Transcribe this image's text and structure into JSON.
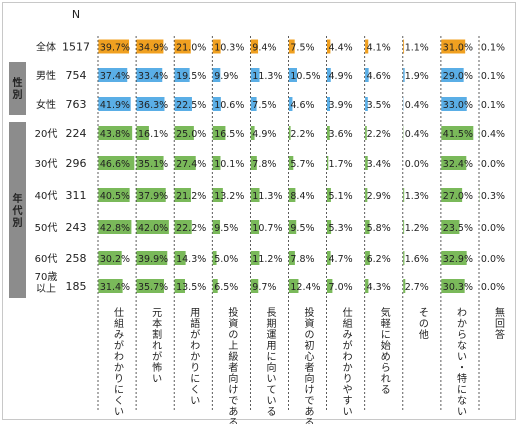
{
  "chart_data": {
    "type": "table",
    "n_header": "N",
    "columns": [
      "仕組みがわかりにくい",
      "元本割れが怖い",
      "用語がわかりにくい",
      "投資の上級者向けである",
      "長期運用に向いている",
      "投資の初心者向けである",
      "仕組みがわかりやすい",
      "気軽に始められる",
      "その他",
      "わからない・特にない",
      "無回答"
    ],
    "groups": [
      {
        "label": "",
        "rows": [
          0
        ]
      },
      {
        "label": "性別",
        "rows": [
          1,
          2
        ]
      },
      {
        "label": "年代別",
        "rows": [
          3,
          4,
          5,
          6,
          7,
          8
        ]
      }
    ],
    "rows": [
      {
        "label": "全体",
        "n": "1517",
        "values": [
          39.7,
          34.9,
          21.0,
          10.3,
          9.4,
          7.5,
          4.4,
          4.1,
          1.1,
          31.0,
          0.1
        ]
      },
      {
        "label": "男性",
        "n": "754",
        "values": [
          37.4,
          33.4,
          19.5,
          9.9,
          11.3,
          10.5,
          4.9,
          4.6,
          1.9,
          29.0,
          0.1
        ]
      },
      {
        "label": "女性",
        "n": "763",
        "values": [
          41.9,
          36.3,
          22.5,
          10.6,
          7.5,
          4.6,
          3.9,
          3.5,
          0.4,
          33.0,
          0.1
        ]
      },
      {
        "label": "20代",
        "n": "224",
        "values": [
          43.8,
          16.1,
          25.0,
          16.5,
          4.9,
          2.2,
          3.6,
          2.2,
          0.4,
          41.5,
          0.4
        ]
      },
      {
        "label": "30代",
        "n": "296",
        "values": [
          46.6,
          35.1,
          27.4,
          10.1,
          7.8,
          5.7,
          1.7,
          3.4,
          0.0,
          32.4,
          0.0
        ]
      },
      {
        "label": "40代",
        "n": "311",
        "values": [
          40.5,
          37.9,
          21.2,
          13.2,
          11.3,
          8.4,
          5.1,
          2.9,
          1.3,
          27.0,
          0.3
        ]
      },
      {
        "label": "50代",
        "n": "243",
        "values": [
          42.8,
          42.0,
          22.2,
          9.5,
          10.7,
          9.5,
          5.3,
          5.8,
          1.2,
          23.5,
          0.0
        ]
      },
      {
        "label": "60代",
        "n": "258",
        "values": [
          30.2,
          39.9,
          14.3,
          5.0,
          11.2,
          7.8,
          4.7,
          6.2,
          1.6,
          32.9,
          0.0
        ]
      },
      {
        "label": "70歳以上",
        "n": "185",
        "values": [
          31.4,
          35.7,
          13.5,
          6.5,
          9.7,
          12.4,
          7.0,
          4.3,
          2.7,
          30.3,
          0.0
        ]
      }
    ],
    "colors": {
      "total": "#f0a020",
      "gender": "#5aaee6",
      "age": "#7ab95a",
      "group_box": "#8c8c8c"
    }
  }
}
